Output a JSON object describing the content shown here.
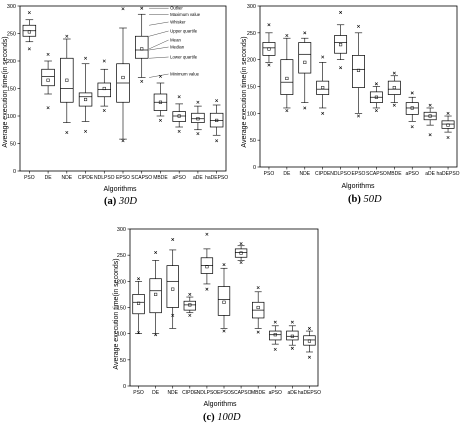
{
  "chart_data": [
    {
      "type": "boxplot",
      "panel": "a",
      "caption_label": "(a)",
      "caption_dim": "30D",
      "xlabel": "Algorithms",
      "ylabel": "Average execution time(in seconds)",
      "ylim": [
        0,
        300
      ],
      "yticks": [
        "0",
        "50",
        "100",
        "150",
        "200",
        "250",
        "300"
      ],
      "categories": [
        "PSO",
        "DE",
        "NDE",
        "CIPDE",
        "NDLPSO",
        "EPSO",
        "SCAPSO",
        "MBDE",
        "aPSO",
        "aDE",
        "haDEPSO"
      ],
      "boxes": [
        {
          "min": 235,
          "q1": 245,
          "median": 255,
          "q3": 265,
          "max": 275,
          "mean": 253,
          "outliers": [
            288,
            222
          ]
        },
        {
          "min": 140,
          "q1": 155,
          "median": 172,
          "q3": 185,
          "max": 200,
          "mean": 165,
          "outliers": [
            115,
            212
          ]
        },
        {
          "min": 88,
          "q1": 125,
          "median": 150,
          "q3": 205,
          "max": 240,
          "mean": 165,
          "outliers": [
            70,
            245
          ]
        },
        {
          "min": 90,
          "q1": 118,
          "median": 135,
          "q3": 142,
          "max": 195,
          "mean": 130,
          "outliers": [
            205,
            72
          ]
        },
        {
          "min": 118,
          "q1": 135,
          "median": 148,
          "q3": 160,
          "max": 185,
          "mean": 150,
          "outliers": [
            110,
            200
          ]
        },
        {
          "min": 58,
          "q1": 125,
          "median": 160,
          "q3": 195,
          "max": 260,
          "mean": 170,
          "outliers": [
            55,
            295
          ]
        },
        {
          "min": 170,
          "q1": 205,
          "median": 220,
          "q3": 245,
          "max": 285,
          "mean": 222,
          "outliers": [
            163,
            296
          ]
        },
        {
          "min": 100,
          "q1": 110,
          "median": 125,
          "q3": 140,
          "max": 160,
          "mean": 125,
          "outliers": [
            92,
            172
          ]
        },
        {
          "min": 80,
          "q1": 90,
          "median": 100,
          "q3": 108,
          "max": 122,
          "mean": 100,
          "outliers": [
            72,
            135
          ]
        },
        {
          "min": 75,
          "q1": 88,
          "median": 95,
          "q3": 105,
          "max": 118,
          "mean": 95,
          "outliers": [
            68,
            125
          ]
        },
        {
          "min": 65,
          "q1": 80,
          "median": 92,
          "q3": 105,
          "max": 120,
          "mean": 92,
          "outliers": [
            55,
            128
          ]
        }
      ],
      "legend_annotations": [
        "Outlier",
        "Maximum value",
        "Whisker",
        "Upper quartile",
        "Mean",
        "Median",
        "Lower quartile",
        "Minimum value"
      ]
    },
    {
      "type": "boxplot",
      "panel": "b",
      "caption_label": "(b)",
      "caption_dim": "50D",
      "xlabel": "Algorithms",
      "ylabel": "Average execution time(in seconds)",
      "ylim": [
        0,
        300
      ],
      "yticks": [
        "0",
        "50",
        "100",
        "150",
        "200",
        "250",
        "300"
      ],
      "categories": [
        "PSO",
        "DE",
        "NDE",
        "CIPDE",
        "NDLPSO",
        "EPSO",
        "SCAPSO",
        "MBDE",
        "aPSO",
        "aDE",
        "haDEPSO"
      ],
      "boxes": [
        {
          "min": 195,
          "q1": 208,
          "median": 222,
          "q3": 232,
          "max": 250,
          "mean": 220,
          "outliers": [
            265,
            190
          ]
        },
        {
          "min": 110,
          "q1": 135,
          "median": 158,
          "q3": 200,
          "max": 240,
          "mean": 165,
          "outliers": [
            105,
            245
          ]
        },
        {
          "min": 120,
          "q1": 175,
          "median": 210,
          "q3": 232,
          "max": 240,
          "mean": 195,
          "outliers": [
            110,
            250
          ]
        },
        {
          "min": 110,
          "q1": 135,
          "median": 145,
          "q3": 160,
          "max": 195,
          "mean": 148,
          "outliers": [
            100,
            205
          ]
        },
        {
          "min": 200,
          "q1": 212,
          "median": 232,
          "q3": 245,
          "max": 265,
          "mean": 228,
          "outliers": [
            185,
            288
          ]
        },
        {
          "min": 100,
          "q1": 148,
          "median": 182,
          "q3": 208,
          "max": 250,
          "mean": 180,
          "outliers": [
            95,
            262
          ]
        },
        {
          "min": 110,
          "q1": 120,
          "median": 130,
          "q3": 140,
          "max": 150,
          "mean": 130,
          "outliers": [
            105,
            155
          ]
        },
        {
          "min": 120,
          "q1": 135,
          "median": 145,
          "q3": 160,
          "max": 170,
          "mean": 148,
          "outliers": [
            115,
            175
          ]
        },
        {
          "min": 85,
          "q1": 98,
          "median": 110,
          "q3": 120,
          "max": 130,
          "mean": 110,
          "outliers": [
            75,
            138
          ]
        },
        {
          "min": 78,
          "q1": 88,
          "median": 95,
          "q3": 102,
          "max": 110,
          "mean": 95,
          "outliers": [
            60,
            115
          ]
        },
        {
          "min": 65,
          "q1": 72,
          "median": 80,
          "q3": 86,
          "max": 95,
          "mean": 78,
          "outliers": [
            55,
            100
          ]
        }
      ]
    },
    {
      "type": "boxplot",
      "panel": "c",
      "caption_label": "(c)",
      "caption_dim": "100D",
      "xlabel": "Algorithms",
      "ylabel": "Average execution time(in seconds)",
      "ylim": [
        0,
        300
      ],
      "yticks": [
        "0",
        "50",
        "100",
        "150",
        "200",
        "250",
        "300"
      ],
      "categories": [
        "PSO",
        "DE",
        "NDE",
        "CIPDE",
        "NDLPSO",
        "EPSO",
        "SCAPSO",
        "MBDE",
        "aPSO",
        "aDE",
        "haDEPSO"
      ],
      "boxes": [
        {
          "min": 100,
          "q1": 138,
          "median": 160,
          "q3": 175,
          "max": 200,
          "mean": 158,
          "outliers": [
            102,
            205
          ]
        },
        {
          "min": 100,
          "q1": 140,
          "median": 182,
          "q3": 205,
          "max": 240,
          "mean": 175,
          "outliers": [
            98,
            255
          ]
        },
        {
          "min": 110,
          "q1": 150,
          "median": 200,
          "q3": 230,
          "max": 260,
          "mean": 185,
          "outliers": [
            135,
            280
          ]
        },
        {
          "min": 140,
          "q1": 145,
          "median": 155,
          "q3": 162,
          "max": 170,
          "mean": 155,
          "outliers": [
            135,
            175
          ]
        },
        {
          "min": 195,
          "q1": 215,
          "median": 230,
          "q3": 245,
          "max": 262,
          "mean": 228,
          "outliers": [
            185,
            290
          ]
        },
        {
          "min": 110,
          "q1": 135,
          "median": 165,
          "q3": 190,
          "max": 225,
          "mean": 160,
          "outliers": [
            105,
            232
          ]
        },
        {
          "min": 240,
          "q1": 246,
          "median": 255,
          "q3": 262,
          "max": 268,
          "mean": 254,
          "outliers": [
            236,
            272
          ]
        },
        {
          "min": 110,
          "q1": 130,
          "median": 145,
          "q3": 160,
          "max": 180,
          "mean": 150,
          "outliers": [
            103,
            188
          ]
        },
        {
          "min": 80,
          "q1": 88,
          "median": 98,
          "q3": 105,
          "max": 115,
          "mean": 98,
          "outliers": [
            70,
            122
          ]
        },
        {
          "min": 78,
          "q1": 88,
          "median": 95,
          "q3": 105,
          "max": 115,
          "mean": 95,
          "outliers": [
            72,
            122
          ]
        },
        {
          "min": 65,
          "q1": 78,
          "median": 88,
          "q3": 96,
          "max": 105,
          "mean": 86,
          "outliers": [
            55,
            110
          ]
        }
      ]
    }
  ]
}
